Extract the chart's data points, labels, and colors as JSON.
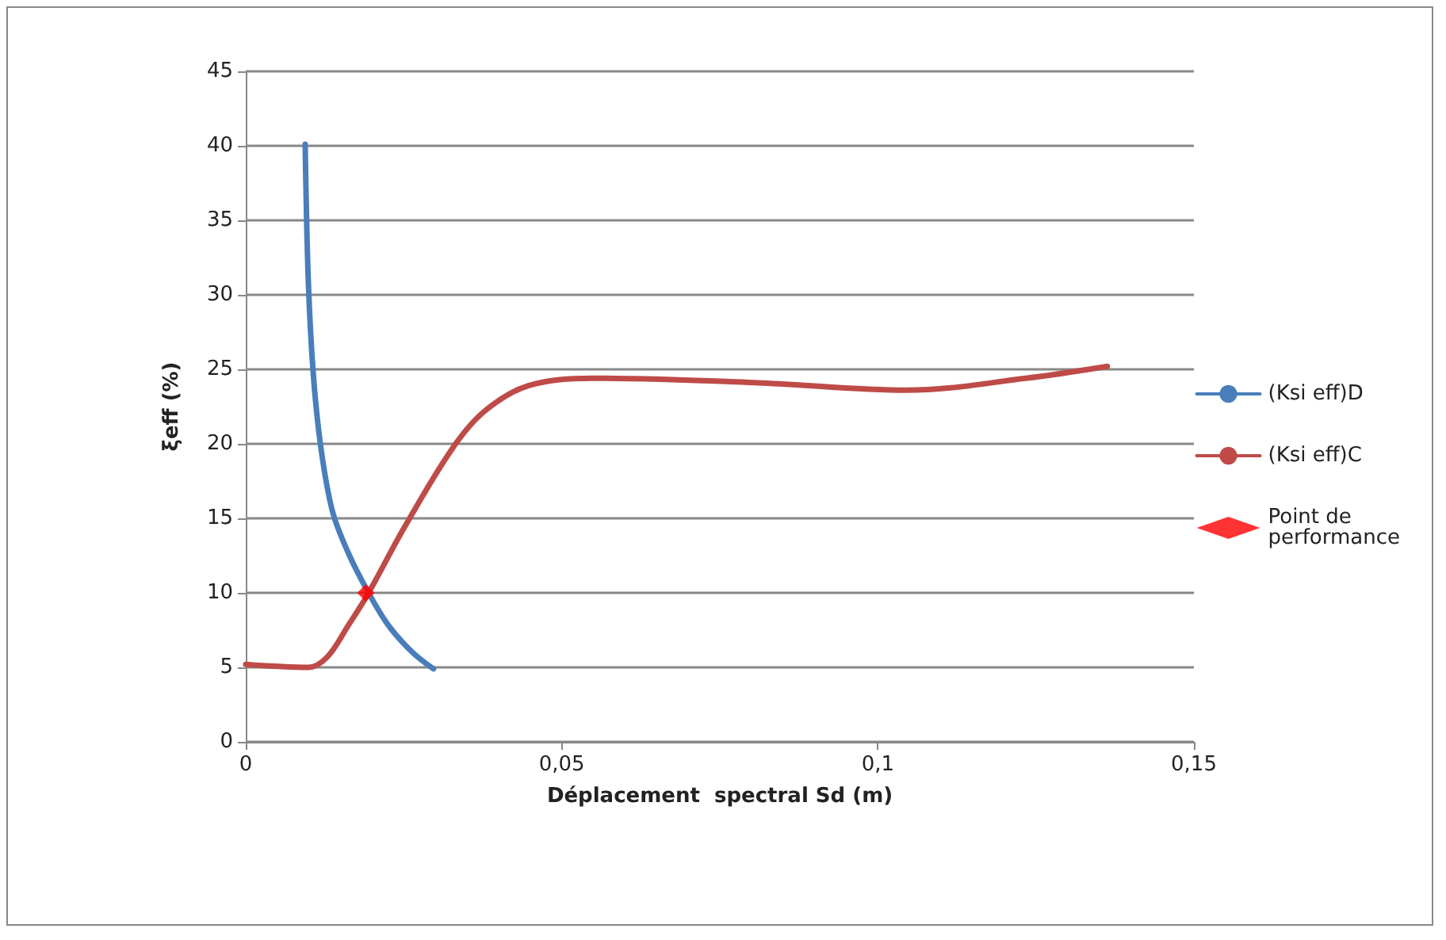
{
  "chart_data": {
    "type": "line",
    "xlabel": "Déplacement  spectral Sd (m)",
    "ylabel": "ξeff (%)",
    "xlim": [
      0,
      0.15
    ],
    "xticks": [
      {
        "value": 0,
        "label": "0"
      },
      {
        "value": 0.05,
        "label": "0,05"
      },
      {
        "value": 0.1,
        "label": "0,1"
      },
      {
        "value": 0.15,
        "label": "0,15"
      }
    ],
    "ylim": [
      0,
      45
    ],
    "yticks": [
      0,
      5,
      10,
      15,
      20,
      25,
      30,
      35,
      40,
      45
    ],
    "grid": "y",
    "legend": "right",
    "marker": "none",
    "line_style": "solid",
    "series": [
      {
        "name": "(Ksi eff)D",
        "color": "#4a7ebb",
        "x": [
          0.0094,
          0.0099,
          0.0107,
          0.0119,
          0.0137,
          0.0162,
          0.0193,
          0.0226,
          0.0264,
          0.0297
        ],
        "values": [
          40.1,
          30.9,
          24.6,
          19.7,
          15.5,
          12.7,
          10.1,
          7.8,
          6.0,
          4.9
        ]
      },
      {
        "name": "(Ksi eff)C",
        "color": "#be4b48",
        "x": [
          0,
          0.0099,
          0.0129,
          0.0162,
          0.0193,
          0.0251,
          0.0327,
          0.0378,
          0.0447,
          0.0548,
          0.081,
          0.1046,
          0.1234,
          0.1363
        ],
        "values": [
          5.2,
          5.0,
          5.7,
          7.8,
          9.9,
          14.4,
          19.7,
          22.2,
          23.9,
          24.4,
          24.1,
          23.6,
          24.4,
          25.2
        ]
      },
      {
        "name": "Point de performance",
        "type": "scatter",
        "marker": "diamond",
        "color": "#ff0000",
        "x": [
          0.019
        ],
        "values": [
          10.0
        ]
      }
    ]
  }
}
